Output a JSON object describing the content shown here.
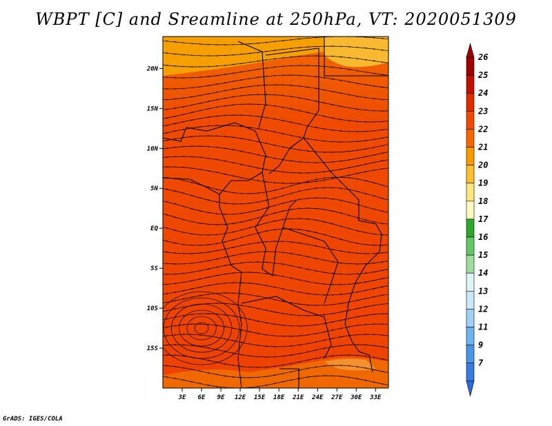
{
  "chart_data": {
    "type": "heatmap",
    "title": "WBPT [C] and Sreamline at 250hPa, VT: 2020051309",
    "x_ticks": [
      "3E",
      "6E",
      "9E",
      "12E",
      "15E",
      "18E",
      "21E",
      "24E",
      "27E",
      "30E",
      "33E"
    ],
    "y_ticks": [
      "20N",
      "15N",
      "10N",
      "5N",
      "EQ",
      "5S",
      "10S",
      "15S"
    ],
    "x_range": [
      0,
      35
    ],
    "y_range": [
      -20,
      24
    ],
    "colorbar": {
      "labels": [
        "26",
        "25",
        "24",
        "23",
        "22",
        "21",
        "20",
        "19",
        "18",
        "17",
        "16",
        "15",
        "14",
        "13",
        "12",
        "11",
        "9",
        "7"
      ],
      "colors": [
        "#a00000",
        "#c01000",
        "#e02a00",
        "#f04a00",
        "#f56800",
        "#f89a00",
        "#fbbf30",
        "#fde580",
        "#fff8c0",
        "#2ea62e",
        "#64c864",
        "#a0dca0",
        "#e0f4f8",
        "#c8e8f8",
        "#a0d0f4",
        "#6fb4f0",
        "#4a96e8",
        "#3a7ae0"
      ],
      "arrow_top": "#a00000",
      "arrow_bottom": "#2a6ae0"
    }
  },
  "footer": {
    "credit": "GrADS: IGES/COLA"
  }
}
